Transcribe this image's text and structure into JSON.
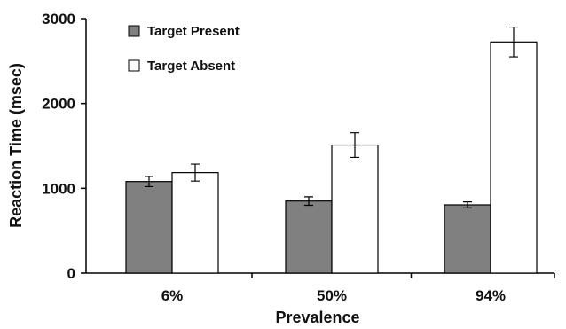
{
  "chart_data": {
    "type": "bar",
    "categories": [
      "6%",
      "50%",
      "94%"
    ],
    "series": [
      {
        "name": "Target Present",
        "color": "#808080",
        "values": [
          1080,
          850,
          805
        ],
        "errors": [
          60,
          50,
          35
        ]
      },
      {
        "name": "Target Absent",
        "color": "#ffffff",
        "values": [
          1185,
          1510,
          2725
        ],
        "errors": [
          100,
          145,
          175
        ]
      }
    ],
    "xlabel": "Prevalence",
    "ylabel": "Reaction Time (msec)",
    "ylim": [
      0,
      3000
    ],
    "yticks": [
      0,
      1000,
      2000,
      3000
    ],
    "ytick_labels": [
      "0",
      "1000",
      "2000",
      "3000"
    ],
    "legend_position": "top-left",
    "grid": false
  }
}
